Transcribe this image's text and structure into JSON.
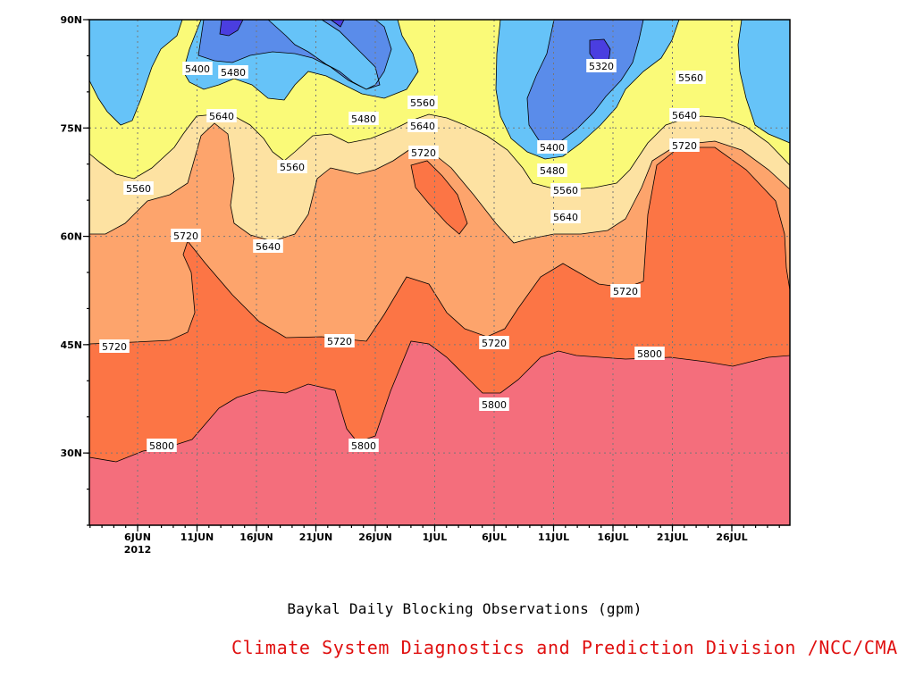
{
  "chart_data": {
    "type": "heatmap",
    "title": "Baykal Daily Blocking Observations (gpm)",
    "xlabel": "",
    "ylabel": "",
    "x_tick_labels": [
      "6JUN",
      "11JUN",
      "16JUN",
      "21JUN",
      "26JUN",
      "1JUL",
      "6JUL",
      "11JUL",
      "16JUL",
      "21JUL",
      "26JUL"
    ],
    "x_year_label": "2012",
    "y_tick_labels": [
      "30N",
      "45N",
      "60N",
      "75N",
      "90N"
    ],
    "ylim_deg": [
      20,
      90
    ],
    "grid": true,
    "contour_levels": [
      5320,
      5400,
      5480,
      5560,
      5640,
      5720,
      5800
    ],
    "contour_labels": [
      {
        "text": "5400"
      },
      {
        "text": "5480"
      },
      {
        "text": "5320"
      },
      {
        "text": "5560"
      },
      {
        "text": "5640"
      },
      {
        "text": "5480"
      },
      {
        "text": "5560"
      },
      {
        "text": "5640"
      },
      {
        "text": "5720"
      },
      {
        "text": "5560"
      },
      {
        "text": "5400"
      },
      {
        "text": "5480"
      },
      {
        "text": "5560"
      },
      {
        "text": "5640"
      },
      {
        "text": "5720"
      },
      {
        "text": "5720"
      },
      {
        "text": "5640"
      },
      {
        "text": "5720"
      },
      {
        "text": "5720"
      },
      {
        "text": "5720"
      },
      {
        "text": "5720"
      },
      {
        "text": "5800"
      },
      {
        "text": "5800"
      },
      {
        "text": "5800"
      },
      {
        "text": "5800"
      },
      {
        "text": "5560"
      },
      {
        "text": "5640"
      }
    ],
    "fill_colors": {
      "below_5320": "#4a3ee0",
      "5320_5400": "#5a8cea",
      "5400_5480": "#66c3f8",
      "5480_5560": "#fafa78",
      "5560_5640": "#fde2a2",
      "5640_5720": "#fda46c",
      "5720_5800": "#fc7545",
      "above_5800": "#f46e7c"
    }
  },
  "footer": {
    "credit": "Climate System Diagnostics and Prediction Division /NCC/CMA"
  }
}
